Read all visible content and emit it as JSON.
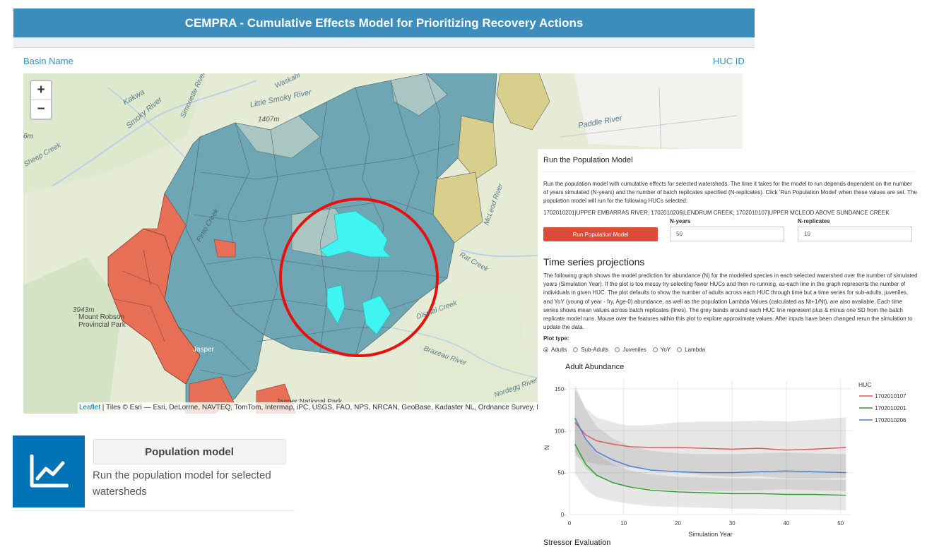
{
  "header": {
    "title": "CEMPRA - Cumulative Effects Model for Prioritizing Recovery Actions"
  },
  "map_header": {
    "basin_label": "Basin Name",
    "huc_label": "HUC ID"
  },
  "map": {
    "zoom_in": "+",
    "zoom_out": "−",
    "labels": {
      "kakwa": "Kakwa",
      "little_smoky": "Little Smoky River",
      "smoky": "Smoky River",
      "simonette": "Simonette River",
      "sheep_creek": "Sheep Creek",
      "waskahi": "Waskahi",
      "elev_1407": "1407m",
      "elev_6": "6m",
      "paddle": "Paddle River",
      "pinto": "Pinto Creek",
      "rat": "Rat Creek",
      "dismal": "Dismal Creek",
      "mcleod": "McLeod River",
      "brazeau": "Brazeau River",
      "nordegg": "Nordegg River",
      "elev_3943": "3943m",
      "robson": "Mount Robson",
      "robson2": "Provincial Park",
      "jasper": "Jasper",
      "jasper_np": "Jasper National Park"
    },
    "attribution_link": "Leaflet",
    "attribution_text": " | Tiles © Esri — Esri, DeLorme, NAVTEQ, TomTom, Intermap, iPC, USGS, FAO, NPS, NRCAN, GeoBase, Kadaster NL, Ordnance Survey, Esri Ja",
    "colors": {
      "watershed": "#6fa6b3",
      "selected": "#3ff4f1",
      "red": "#e66f55",
      "yellow": "#d9cf8c",
      "circle": "#e8100f"
    }
  },
  "panel": {
    "title": "Run the Population Model",
    "description": "Run the population model with cumulative effects for selected watersheds. The time it takes for the model to run depends dependent on the number of years simulated (N-years) and the number of batch replicates specified (N-replicates). Click 'Run Population Model' when these values are set. The population model will run for the following HUCs selected:",
    "selected_hucs": "1702010201|UPPER EMBARRAS RIVER; 1702010206|LENDRUM CREEK; 1702010107|UPPER MCLEOD ABOVE SUNDANCE CREEK",
    "run_button": "Run Population Model",
    "n_years_label": "N-years",
    "n_years_value": "50",
    "n_replicates_label": "N-replicates",
    "n_replicates_value": "10",
    "ts_title": "Time series projections",
    "ts_description": "The following graph shows the model prediction for abundance (N) for the modelled species in each selected watershed over the number of simulated years (Simulation Year). If the plot is too messy try selecting fewer HUCs and then re-running, as each line in the graph represents the number of individuals in given HUC. The plot defaults to show the number of adults across each HUC through time but a time series for sub-adults, juveniles, and YoY (young of year - fry, Age-0) abundance, as well as the population Lambda Values (calculated as Nt+1/Nt), are also available. Each time series shows mean values across batch replicates (lines). The grey bands around each HUC line represent plus & minus one SD from the batch replicate model runs. Mouse over the features within this plot to explore approximate values. After inputs have been changed rerun the simulation to update the data.",
    "plot_type_label": "Plot type:",
    "plot_types": [
      "Adults",
      "Sub-Adults",
      "Juveniles",
      "YoY",
      "Lambda"
    ],
    "plot_type_selected": 0,
    "stressor_heading": "Stressor Evaluation"
  },
  "chart_data": {
    "type": "line",
    "title": "Adult Abundance",
    "xlabel": "Simulation Year",
    "ylabel": "N",
    "xlim": [
      0,
      52
    ],
    "ylim": [
      0,
      160
    ],
    "xticks": [
      0,
      10,
      20,
      30,
      40,
      50
    ],
    "yticks": [
      0,
      50,
      100,
      150
    ],
    "legend_title": "HUC",
    "legend_position": "right",
    "grid": true,
    "x": [
      1,
      3,
      5,
      8,
      11,
      15,
      20,
      25,
      30,
      35,
      40,
      45,
      51
    ],
    "series": [
      {
        "name": "1702010107",
        "color": "#e05c5c",
        "values": [
          110,
          95,
          88,
          84,
          81,
          80,
          80,
          79,
          78,
          79,
          77,
          78,
          80
        ],
        "sd": [
          40,
          32,
          28,
          26,
          25,
          27,
          30,
          32,
          33,
          33,
          34,
          35,
          36
        ]
      },
      {
        "name": "1702010201",
        "color": "#2ca02c",
        "values": [
          84,
          60,
          47,
          38,
          33,
          29,
          27,
          26,
          25,
          25,
          24,
          24,
          23
        ],
        "sd": [
          35,
          30,
          26,
          22,
          20,
          19,
          18,
          18,
          18,
          18,
          18,
          18,
          18
        ]
      },
      {
        "name": "1702010206",
        "color": "#4a7fd4",
        "values": [
          115,
          90,
          75,
          65,
          58,
          53,
          51,
          50,
          50,
          51,
          52,
          51,
          50
        ],
        "sd": [
          40,
          35,
          30,
          26,
          24,
          23,
          22,
          22,
          22,
          22,
          22,
          22,
          22
        ]
      }
    ]
  },
  "tool_card": {
    "icon": "line-chart-icon",
    "button": "Population model",
    "description": "Run the population model for selected watersheds"
  }
}
